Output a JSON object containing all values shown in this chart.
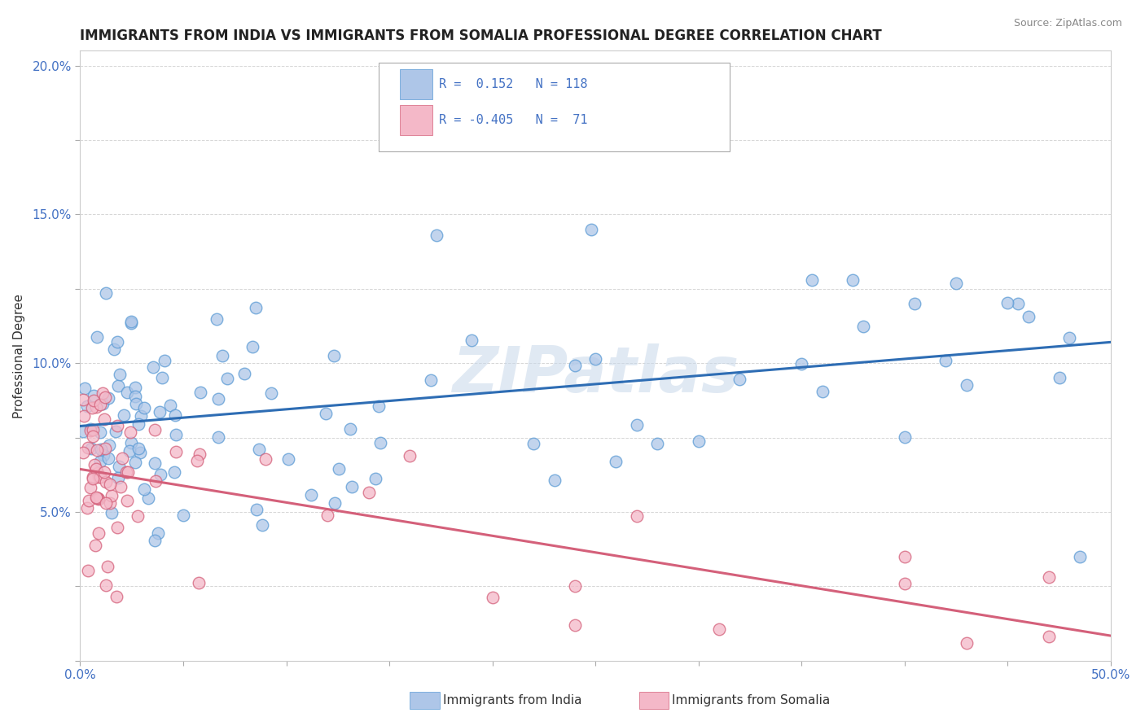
{
  "title": "IMMIGRANTS FROM INDIA VS IMMIGRANTS FROM SOMALIA PROFESSIONAL DEGREE CORRELATION CHART",
  "source": "Source: ZipAtlas.com",
  "ylabel": "Professional Degree",
  "xlim": [
    0.0,
    0.5
  ],
  "ylim": [
    0.0,
    0.205
  ],
  "xtick_positions": [
    0.0,
    0.05,
    0.1,
    0.15,
    0.2,
    0.25,
    0.3,
    0.35,
    0.4,
    0.45,
    0.5
  ],
  "xticklabels": [
    "0.0%",
    "",
    "",
    "",
    "",
    "",
    "",
    "",
    "",
    "",
    "50.0%"
  ],
  "ytick_positions": [
    0.0,
    0.025,
    0.05,
    0.075,
    0.1,
    0.125,
    0.15,
    0.175,
    0.2
  ],
  "yticklabels": [
    "",
    "",
    "5.0%",
    "",
    "10.0%",
    "",
    "15.0%",
    "",
    "20.0%"
  ],
  "india_color": "#aec6e8",
  "india_edge_color": "#5b9bd5",
  "somalia_color": "#f4b8c8",
  "somalia_edge_color": "#d4607a",
  "india_line_color": "#2e6db4",
  "somalia_line_color": "#d4607a",
  "R_india": 0.152,
  "N_india": 118,
  "R_somalia": -0.405,
  "N_somalia": 71,
  "legend_india": "Immigrants from India",
  "legend_somalia": "Immigrants from Somalia",
  "watermark": "ZIPatlas",
  "tick_color": "#4472c4",
  "grid_color": "#cccccc",
  "title_color": "#222222",
  "source_color": "#888888",
  "ylabel_color": "#333333"
}
